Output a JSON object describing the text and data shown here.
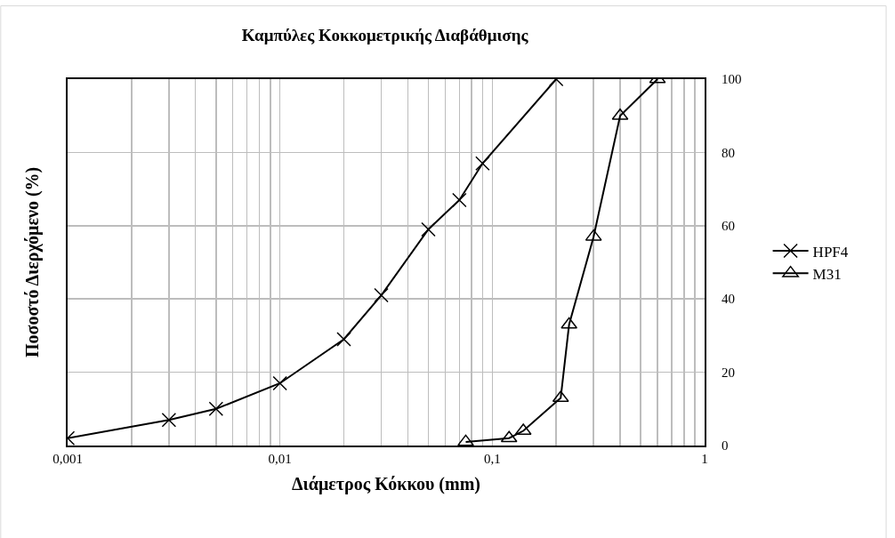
{
  "chart_data": {
    "type": "line",
    "title": "Καμπύλες Κοκκομετρικής Διαβάθμισης",
    "xlabel": "Διάμετρος Κόκκου (mm)",
    "ylabel": "Ποσοστό Διερχόμενο (%)",
    "log": "x",
    "grid": true,
    "legend": "right",
    "line_style": "solid",
    "xlim": [
      0.001,
      1
    ],
    "xticks": [
      {
        "value": 0.001,
        "label": "0,001"
      },
      {
        "value": 0.01,
        "label": "0,01"
      },
      {
        "value": 0.1,
        "label": "0,1"
      },
      1
    ],
    "ylim": [
      0,
      100
    ],
    "yticks": [
      0,
      20,
      40,
      60,
      80,
      100
    ],
    "series": [
      {
        "name": "HPF4",
        "color": "#000000",
        "marker": "cross",
        "x": [
          0.001,
          0.003,
          0.005,
          0.01,
          0.02,
          0.03,
          0.05,
          0.07,
          0.09,
          0.2
        ],
        "values": [
          2,
          7,
          10,
          17,
          29,
          41,
          59,
          67,
          77,
          100
        ]
      },
      {
        "name": "M31",
        "color": "#000000",
        "marker": "triangle",
        "x": [
          0.075,
          0.12,
          0.14,
          0.21,
          0.23,
          0.3,
          0.4,
          0.6
        ],
        "values": [
          1,
          2,
          4,
          13,
          33,
          57,
          90,
          100
        ]
      }
    ]
  }
}
